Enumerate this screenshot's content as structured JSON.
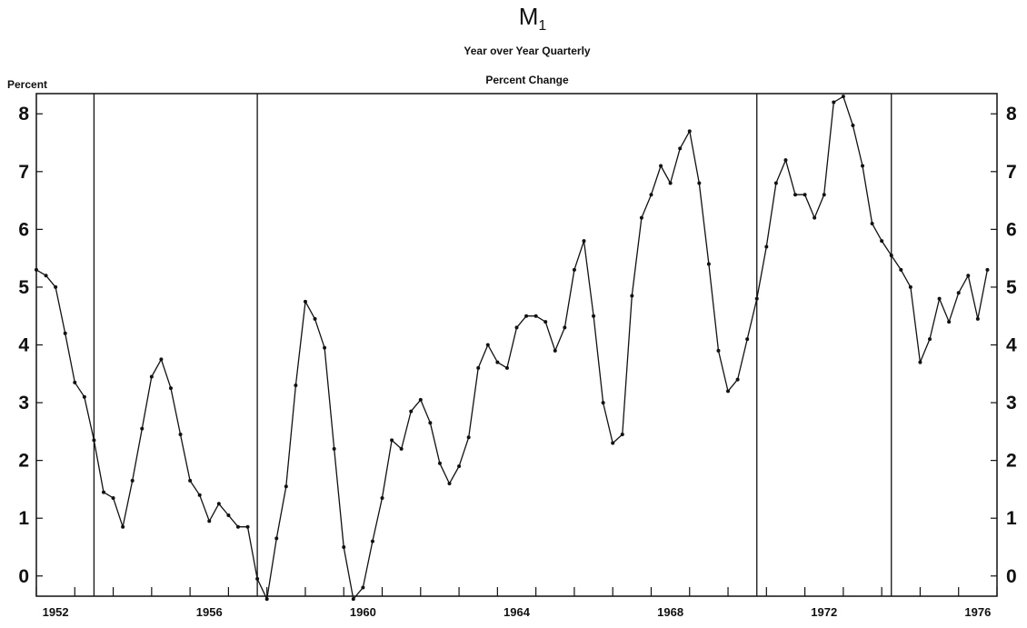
{
  "chart_data": {
    "type": "line",
    "title": "M",
    "title_subscript": "1",
    "subtitle_line1": "Year over Year Quarterly",
    "subtitle_line2": "Percent Change",
    "ylabel": "Percent",
    "xlabel": "",
    "xlim": [
      1952.0,
      1977.0
    ],
    "ylim": [
      -0.35,
      8.35
    ],
    "yticks": [
      0,
      1,
      2,
      3,
      4,
      5,
      6,
      7,
      8
    ],
    "xticks": [
      {
        "value": 1952,
        "label": "1952"
      },
      {
        "value": 1956,
        "label": "1956"
      },
      {
        "value": 1960,
        "label": "1960"
      },
      {
        "value": 1964,
        "label": "1964"
      },
      {
        "value": 1968,
        "label": "1968"
      },
      {
        "value": 1972,
        "label": "1972"
      },
      {
        "value": 1976,
        "label": "1976"
      }
    ],
    "grid": false,
    "recession_lines": [
      1953.5,
      1957.75,
      1970.75,
      1974.25
    ],
    "color": "#111111",
    "series": [
      {
        "x": [
          1952.0,
          1952.25,
          1952.5,
          1952.75,
          1953.0,
          1953.25,
          1953.5,
          1953.75,
          1954.0,
          1954.25,
          1954.5,
          1954.75,
          1955.0,
          1955.25,
          1955.5,
          1955.75,
          1956.0,
          1956.25,
          1956.5,
          1956.75,
          1957.0,
          1957.25,
          1957.5,
          1957.75,
          1958.0,
          1958.25,
          1958.5,
          1958.75,
          1959.0,
          1959.25,
          1959.5,
          1959.75,
          1960.0,
          1960.25,
          1960.5,
          1960.75,
          1961.0,
          1961.25,
          1961.5,
          1961.75,
          1962.0,
          1962.25,
          1962.5,
          1962.75,
          1963.0,
          1963.25,
          1963.5,
          1963.75,
          1964.0,
          1964.25,
          1964.5,
          1964.75,
          1965.0,
          1965.25,
          1965.5,
          1965.75,
          1966.0,
          1966.25,
          1966.5,
          1966.75,
          1967.0,
          1967.25,
          1967.5,
          1967.75,
          1968.0,
          1968.25,
          1968.5,
          1968.75,
          1969.0,
          1969.25,
          1969.5,
          1969.75,
          1970.0,
          1970.25,
          1970.5,
          1970.75,
          1971.0,
          1971.25,
          1971.5,
          1971.75,
          1972.0,
          1972.25,
          1972.5,
          1972.75,
          1973.0,
          1973.25,
          1973.5,
          1973.75,
          1974.0,
          1974.25,
          1974.5,
          1974.75,
          1975.0,
          1975.25,
          1975.5,
          1975.75,
          1976.0,
          1976.25,
          1976.5,
          1976.75
        ],
        "values": [
          5.3,
          5.2,
          5.0,
          4.2,
          3.35,
          3.1,
          2.35,
          1.45,
          1.35,
          0.85,
          1.65,
          2.55,
          3.45,
          3.75,
          3.25,
          2.45,
          1.65,
          1.4,
          0.95,
          1.25,
          1.05,
          0.85,
          0.85,
          -0.05,
          -0.4,
          0.65,
          1.55,
          3.3,
          4.75,
          4.45,
          3.95,
          2.2,
          0.5,
          -0.4,
          -0.2,
          0.6,
          1.35,
          2.35,
          2.2,
          2.85,
          3.05,
          2.65,
          1.95,
          1.6,
          1.9,
          2.4,
          3.6,
          4.0,
          3.7,
          3.6,
          4.3,
          4.5,
          4.5,
          4.4,
          3.9,
          4.3,
          5.3,
          5.8,
          4.5,
          3.0,
          2.3,
          2.45,
          4.85,
          6.2,
          6.6,
          7.1,
          6.8,
          7.4,
          7.7,
          6.8,
          5.4,
          3.9,
          3.2,
          3.4,
          4.1,
          4.8,
          5.7,
          6.8,
          7.2,
          6.6,
          6.6,
          6.2,
          6.6,
          8.2,
          8.3,
          7.8,
          7.1,
          6.1,
          5.8,
          5.55,
          5.3,
          5.0,
          3.7,
          4.1,
          4.8,
          4.4,
          4.9,
          5.2,
          4.45,
          5.3
        ]
      }
    ]
  }
}
